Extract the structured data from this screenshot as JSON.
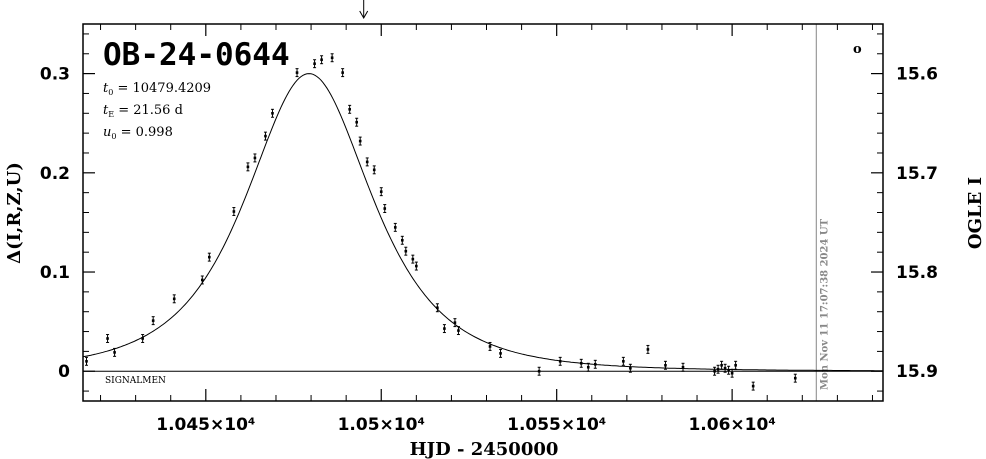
{
  "chart_data": {
    "type": "scatter",
    "title": "OB-24-0644",
    "xlabel": "HJD - 2450000",
    "ylabel_left": "Δ(I,R,Z,U)",
    "ylabel_right": "OGLE I",
    "xlim": [
      10415,
      10643
    ],
    "ylim_left": [
      -0.03,
      0.35
    ],
    "ylim_right_note": "magnitude axis, inverted",
    "x_ticks": [
      {
        "value": 10450,
        "label": "1.045×10⁴"
      },
      {
        "value": 10500,
        "label": "1.05×10⁴"
      },
      {
        "value": 10550,
        "label": "1.055×10⁴"
      },
      {
        "value": 10600,
        "label": "1.06×10⁴"
      }
    ],
    "y_ticks_left": [
      {
        "value": 0,
        "label": "0"
      },
      {
        "value": 0.1,
        "label": "0.1"
      },
      {
        "value": 0.2,
        "label": "0.2"
      },
      {
        "value": 0.3,
        "label": "0.3"
      }
    ],
    "y_ticks_right": [
      {
        "value": 0.3,
        "label": "15.6"
      },
      {
        "value": 0.2,
        "label": "15.7"
      },
      {
        "value": 0.1,
        "label": "15.8"
      },
      {
        "value": 0.0,
        "label": "15.9"
      }
    ],
    "params": [
      {
        "sym": "t",
        "sub": "0",
        "text": " = 10479.4209"
      },
      {
        "sym": "t",
        "sub": "E",
        "text": " = 21.56  d"
      },
      {
        "sym": "u",
        "sub": "0",
        "text": " = 0.998"
      }
    ],
    "model": {
      "t0": 10479.4209,
      "tE": 21.56,
      "u0": 0.998,
      "amplitude_scale": 0.5825
    },
    "current_time_line": {
      "x": 10624,
      "label": "Mon Nov 11 17:07:38 2024 UT"
    },
    "peak_marker_x": 10495,
    "footer_label": "SIGNALMEN",
    "corner_symbol": "o",
    "error_bar": 0.004,
    "points": [
      {
        "x": 10416,
        "y": 0.01
      },
      {
        "x": 10422,
        "y": 0.033
      },
      {
        "x": 10424,
        "y": 0.019
      },
      {
        "x": 10432,
        "y": 0.033
      },
      {
        "x": 10435,
        "y": 0.051
      },
      {
        "x": 10441,
        "y": 0.073
      },
      {
        "x": 10449,
        "y": 0.092
      },
      {
        "x": 10451,
        "y": 0.115
      },
      {
        "x": 10458,
        "y": 0.161
      },
      {
        "x": 10462,
        "y": 0.206
      },
      {
        "x": 10464,
        "y": 0.215
      },
      {
        "x": 10467,
        "y": 0.237
      },
      {
        "x": 10469,
        "y": 0.26
      },
      {
        "x": 10476,
        "y": 0.301
      },
      {
        "x": 10481,
        "y": 0.31
      },
      {
        "x": 10483,
        "y": 0.314
      },
      {
        "x": 10486,
        "y": 0.316
      },
      {
        "x": 10489,
        "y": 0.301
      },
      {
        "x": 10491,
        "y": 0.264
      },
      {
        "x": 10493,
        "y": 0.251
      },
      {
        "x": 10494,
        "y": 0.232
      },
      {
        "x": 10496,
        "y": 0.211
      },
      {
        "x": 10498,
        "y": 0.203
      },
      {
        "x": 10500,
        "y": 0.181
      },
      {
        "x": 10501,
        "y": 0.164
      },
      {
        "x": 10504,
        "y": 0.145
      },
      {
        "x": 10506,
        "y": 0.132
      },
      {
        "x": 10507,
        "y": 0.121
      },
      {
        "x": 10509,
        "y": 0.113
      },
      {
        "x": 10510,
        "y": 0.106
      },
      {
        "x": 10516,
        "y": 0.064
      },
      {
        "x": 10518,
        "y": 0.043
      },
      {
        "x": 10521,
        "y": 0.049
      },
      {
        "x": 10522,
        "y": 0.041
      },
      {
        "x": 10531,
        "y": 0.025
      },
      {
        "x": 10534,
        "y": 0.018
      },
      {
        "x": 10545,
        "y": 0.0
      },
      {
        "x": 10551,
        "y": 0.01
      },
      {
        "x": 10557,
        "y": 0.008
      },
      {
        "x": 10559,
        "y": 0.004
      },
      {
        "x": 10561,
        "y": 0.007
      },
      {
        "x": 10569,
        "y": 0.01
      },
      {
        "x": 10571,
        "y": 0.003
      },
      {
        "x": 10576,
        "y": 0.022
      },
      {
        "x": 10581,
        "y": 0.006
      },
      {
        "x": 10586,
        "y": 0.004
      },
      {
        "x": 10595,
        "y": 0.0
      },
      {
        "x": 10596,
        "y": 0.002
      },
      {
        "x": 10597,
        "y": 0.006
      },
      {
        "x": 10598,
        "y": 0.003
      },
      {
        "x": 10599,
        "y": 0.001
      },
      {
        "x": 10600,
        "y": -0.002
      },
      {
        "x": 10601,
        "y": 0.006
      },
      {
        "x": 10606,
        "y": -0.015
      },
      {
        "x": 10618,
        "y": -0.007
      }
    ]
  }
}
